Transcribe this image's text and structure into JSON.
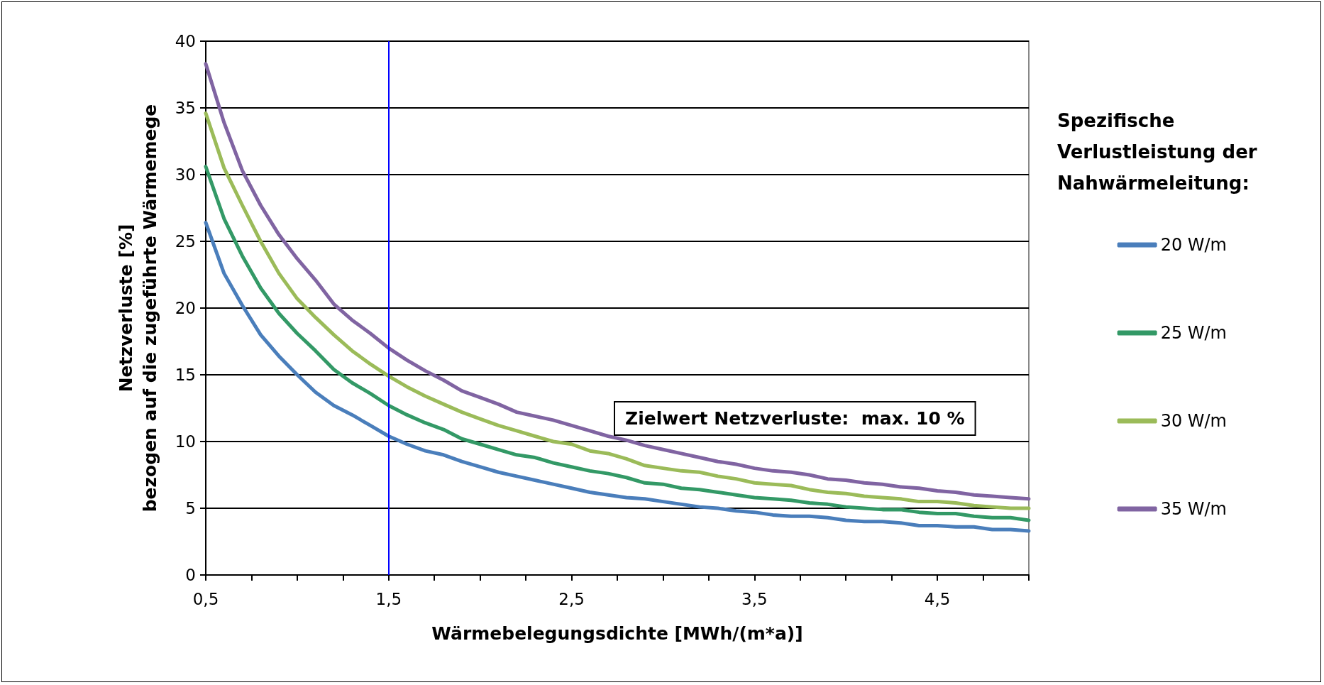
{
  "chart_data": {
    "type": "line",
    "xlabel": "Wärmebelegungsdichte [MWh/(m*a)]",
    "ylabel": "Netzverluste [%]\nbezogen auf die zugeführte Wärmemege",
    "legend_title": "Spezifische Verlustleistung der Nahwärmeleitung:",
    "annotations": [
      "Zielwert Netzverluste:  max. 10 %"
    ],
    "x": [
      0.5,
      0.6,
      0.7,
      0.8,
      0.9,
      1.0,
      1.1,
      1.2,
      1.3,
      1.4,
      1.5,
      1.6,
      1.7,
      1.8,
      1.9,
      2.0,
      2.1,
      2.2,
      2.3,
      2.4,
      2.5,
      2.6,
      2.7,
      2.8,
      2.9,
      3.0,
      3.1,
      3.2,
      3.3,
      3.4,
      3.5,
      3.6,
      3.7,
      3.8,
      3.9,
      4.0,
      4.1,
      4.2,
      4.3,
      4.4,
      4.5,
      4.6,
      4.7,
      4.8,
      4.9,
      5.0
    ],
    "series": [
      {
        "name": "20 W/m",
        "color": "#4a7ebb",
        "values": [
          26.4,
          22.6,
          20.2,
          18.0,
          16.4,
          15.0,
          13.7,
          12.7,
          12.0,
          11.2,
          10.4,
          9.8,
          9.3,
          9.0,
          8.5,
          8.1,
          7.7,
          7.4,
          7.1,
          6.8,
          6.5,
          6.2,
          6.0,
          5.8,
          5.7,
          5.5,
          5.3,
          5.1,
          5.0,
          4.8,
          4.7,
          4.5,
          4.4,
          4.4,
          4.3,
          4.1,
          4.0,
          4.0,
          3.9,
          3.7,
          3.7,
          3.6,
          3.6,
          3.4,
          3.4,
          3.3
        ]
      },
      {
        "name": "25 W/m",
        "color": "#339966",
        "values": [
          30.6,
          26.7,
          23.9,
          21.5,
          19.6,
          18.1,
          16.8,
          15.4,
          14.4,
          13.6,
          12.7,
          12.0,
          11.4,
          10.9,
          10.2,
          9.8,
          9.4,
          9.0,
          8.8,
          8.4,
          8.1,
          7.8,
          7.6,
          7.3,
          6.9,
          6.8,
          6.5,
          6.4,
          6.2,
          6.0,
          5.8,
          5.7,
          5.6,
          5.4,
          5.3,
          5.1,
          5.0,
          4.9,
          4.9,
          4.7,
          4.6,
          4.6,
          4.4,
          4.3,
          4.3,
          4.1
        ]
      },
      {
        "name": "30 W/m",
        "color": "#9bbb59",
        "values": [
          34.6,
          30.5,
          27.7,
          25.0,
          22.6,
          20.7,
          19.3,
          18.0,
          16.8,
          15.8,
          14.9,
          14.1,
          13.4,
          12.8,
          12.2,
          11.7,
          11.2,
          10.8,
          10.4,
          10.0,
          9.8,
          9.3,
          9.1,
          8.7,
          8.2,
          8.0,
          7.8,
          7.7,
          7.4,
          7.2,
          6.9,
          6.8,
          6.7,
          6.4,
          6.2,
          6.1,
          5.9,
          5.8,
          5.7,
          5.5,
          5.5,
          5.4,
          5.2,
          5.1,
          5.0,
          5.0
        ]
      },
      {
        "name": "35 W/m",
        "color": "#8064a2",
        "values": [
          38.3,
          33.9,
          30.3,
          27.7,
          25.5,
          23.7,
          22.1,
          20.3,
          19.1,
          18.1,
          17.0,
          16.1,
          15.3,
          14.6,
          13.8,
          13.3,
          12.8,
          12.2,
          11.9,
          11.6,
          11.2,
          10.8,
          10.4,
          10.1,
          9.7,
          9.4,
          9.1,
          8.8,
          8.5,
          8.3,
          8.0,
          7.8,
          7.7,
          7.5,
          7.2,
          7.1,
          6.9,
          6.8,
          6.6,
          6.5,
          6.3,
          6.2,
          6.0,
          5.9,
          5.8,
          5.7
        ]
      }
    ],
    "xlim": [
      0.5,
      5
    ],
    "xticks": [
      {
        "value": 0.5,
        "label": "0,5"
      },
      {
        "value": 0.75,
        "label": null
      },
      {
        "value": 1,
        "label": null
      },
      {
        "value": 1.25,
        "label": null
      },
      {
        "value": 1.5,
        "label": "1,5"
      },
      {
        "value": 1.75,
        "label": null
      },
      {
        "value": 2,
        "label": null
      },
      {
        "value": 2.25,
        "label": null
      },
      {
        "value": 2.5,
        "label": "2,5"
      },
      {
        "value": 2.75,
        "label": null
      },
      {
        "value": 3,
        "label": null
      },
      {
        "value": 3.25,
        "label": null
      },
      {
        "value": 3.5,
        "label": "3,5"
      },
      {
        "value": 3.75,
        "label": null
      },
      {
        "value": 4,
        "label": null
      },
      {
        "value": 4.25,
        "label": null
      },
      {
        "value": 4.5,
        "label": "4,5"
      },
      {
        "value": 4.75,
        "label": null
      },
      {
        "value": 5,
        "label": null
      }
    ],
    "ylim": [
      0,
      40
    ],
    "yticks": [
      0,
      5,
      10,
      15,
      20,
      25,
      30,
      35,
      40
    ],
    "ref_lines": [
      {
        "axis": "x",
        "value": 1.5,
        "color": "#0000ff"
      }
    ],
    "grid": "y",
    "legend": "right",
    "marker": "none",
    "line_style": "solid"
  }
}
